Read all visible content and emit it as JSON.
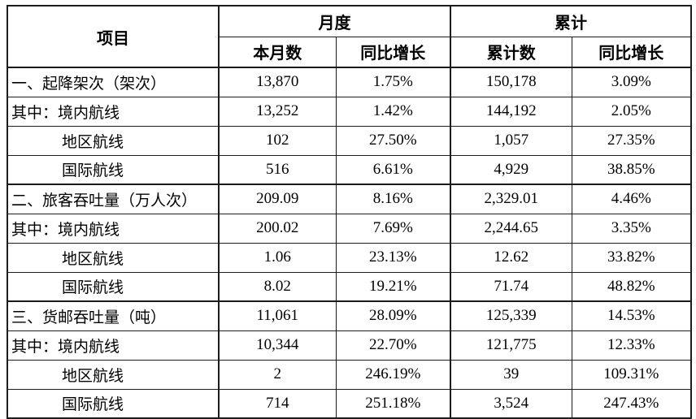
{
  "table": {
    "header": {
      "item": "项目",
      "monthly_group": "月度",
      "cumulative_group": "累计",
      "monthly_value": "本月数",
      "monthly_yoy": "同比增长",
      "cumulative_value": "累计数",
      "cumulative_yoy": "同比增长"
    },
    "rows": [
      {
        "label": "一、起降架次（架次）",
        "monthly_value": "13,870",
        "monthly_yoy": "1.75%",
        "cumulative_value": "150,178",
        "cumulative_yoy": "3.09%"
      },
      {
        "label": "其中：境内航线",
        "monthly_value": "13,252",
        "monthly_yoy": "1.42%",
        "cumulative_value": "144,192",
        "cumulative_yoy": "2.05%"
      },
      {
        "label": "地区航线",
        "monthly_value": "102",
        "monthly_yoy": "27.50%",
        "cumulative_value": "1,057",
        "cumulative_yoy": "27.35%"
      },
      {
        "label": "国际航线",
        "monthly_value": "516",
        "monthly_yoy": "6.61%",
        "cumulative_value": "4,929",
        "cumulative_yoy": "38.85%"
      },
      {
        "label": "二、旅客吞吐量（万人次）",
        "monthly_value": "209.09",
        "monthly_yoy": "8.16%",
        "cumulative_value": "2,329.01",
        "cumulative_yoy": "4.46%"
      },
      {
        "label": "其中：境内航线",
        "monthly_value": "200.02",
        "monthly_yoy": "7.69%",
        "cumulative_value": "2,244.65",
        "cumulative_yoy": "3.35%"
      },
      {
        "label": "地区航线",
        "monthly_value": "1.06",
        "monthly_yoy": "23.13%",
        "cumulative_value": "12.62",
        "cumulative_yoy": "33.82%"
      },
      {
        "label": "国际航线",
        "monthly_value": "8.02",
        "monthly_yoy": "19.21%",
        "cumulative_value": "71.74",
        "cumulative_yoy": "48.82%"
      },
      {
        "label": "三、货邮吞吐量（吨）",
        "monthly_value": "11,061",
        "monthly_yoy": "28.09%",
        "cumulative_value": "125,339",
        "cumulative_yoy": "14.53%"
      },
      {
        "label": "其中：境内航线",
        "monthly_value": "10,344",
        "monthly_yoy": "22.70%",
        "cumulative_value": "121,775",
        "cumulative_yoy": "12.33%"
      },
      {
        "label": "地区航线",
        "monthly_value": "2",
        "monthly_yoy": "246.19%",
        "cumulative_value": "39",
        "cumulative_yoy": "109.31%"
      },
      {
        "label": "国际航线",
        "monthly_value": "714",
        "monthly_yoy": "251.18%",
        "cumulative_value": "3,524",
        "cumulative_yoy": "247.43%"
      }
    ]
  }
}
